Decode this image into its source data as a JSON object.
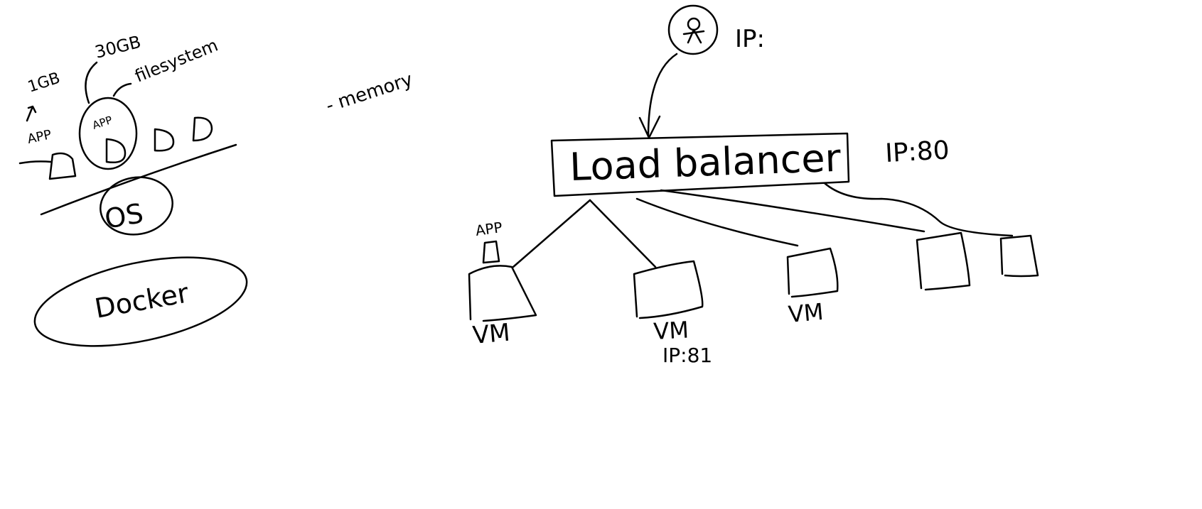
{
  "left_sketch": {
    "app_size_label": "1GB",
    "app_label_1": "APP",
    "app_label_2": "APP",
    "storage_label": "30GB",
    "filesystem_label": "filesystem",
    "os_label": "OS",
    "docker_label": "Docker"
  },
  "memory_note": "- memory",
  "client": {
    "ip_label": "IP:"
  },
  "load_balancer": {
    "label": "Load balancer",
    "ip_label": "IP:80"
  },
  "vms": {
    "app_label": "APP",
    "vm1_label": "VM",
    "vm2_label": "VM",
    "vm2_ip": "IP:81",
    "vm3_label": "VM"
  },
  "colors": {
    "ink": "#000000",
    "background": "#ffffff"
  }
}
